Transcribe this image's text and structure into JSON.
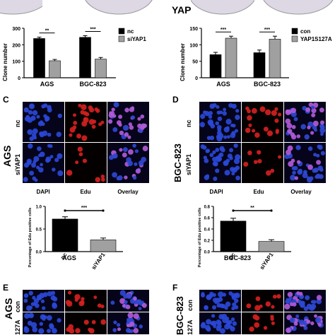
{
  "panels": {
    "A": {
      "label": "",
      "row_labels": [],
      "top_fragment": ""
    },
    "B": {
      "label": "",
      "side_text": "YAP"
    },
    "C": {
      "label": "C",
      "cell_line": "AGS",
      "rows": [
        "nc",
        "siYAP1"
      ],
      "cols": [
        "DAPI",
        "Edu",
        "Overlay"
      ]
    },
    "D": {
      "label": "D",
      "cell_line": "BGC-823",
      "rows": [
        "nc",
        "siYAP1"
      ],
      "cols": [
        "DAPI",
        "Edu",
        "Overlay"
      ]
    },
    "E": {
      "label": "E",
      "cell_line": "AGS",
      "rows": [
        "con",
        "127A"
      ]
    },
    "F": {
      "label": "F",
      "cell_line": "BGC-823",
      "rows": [
        "con",
        "127A"
      ]
    }
  },
  "colors": {
    "dapi": "#2a48d6",
    "edu": "#d42020",
    "overlay": "#a050d0",
    "bar_dark": "#000000",
    "bar_light": "#a0a0a0",
    "plate_bg": "#ddd8e4",
    "colony": "#6a4fa0"
  },
  "chart_data": [
    {
      "id": "clone-A",
      "type": "bar",
      "categories": [
        "AGS",
        "BGC-823"
      ],
      "series": [
        {
          "name": "nc",
          "values": [
            238,
            245
          ],
          "errors": [
            8,
            10
          ],
          "color": "#000000"
        },
        {
          "name": "siYAP1",
          "values": [
            103,
            113
          ],
          "errors": [
            8,
            10
          ],
          "color": "#a0a0a0"
        }
      ],
      "ylabel": "Clone number",
      "ylim": [
        0,
        300
      ],
      "yticks": [
        0,
        100,
        200,
        300
      ],
      "significance": [
        "**",
        "***"
      ],
      "legend": "right"
    },
    {
      "id": "clone-B",
      "type": "bar",
      "categories": [
        "AGS",
        "BGC-823"
      ],
      "series": [
        {
          "name": "con",
          "values": [
            70,
            76
          ],
          "errors": [
            7,
            8
          ],
          "color": "#000000"
        },
        {
          "name": "YAP1S127A",
          "values": [
            120,
            117
          ],
          "errors": [
            6,
            9
          ],
          "color": "#a0a0a0"
        }
      ],
      "ylabel": "Clone number",
      "ylim": [
        0,
        150
      ],
      "yticks": [
        0,
        50,
        100,
        150
      ],
      "significance": [
        "***",
        "***"
      ],
      "legend": "right"
    },
    {
      "id": "edu-C",
      "type": "bar",
      "categories": [
        "nc",
        "siYAP1"
      ],
      "group_label": "AGS",
      "values": [
        0.72,
        0.26
      ],
      "errors": [
        0.05,
        0.04
      ],
      "colors": [
        "#000000",
        "#a0a0a0"
      ],
      "ylabel": "Percentage of Edu positive cells",
      "ylim": [
        0,
        1.0
      ],
      "yticks": [
        0.0,
        0.5,
        1.0
      ],
      "significance": "***"
    },
    {
      "id": "edu-D",
      "type": "bar",
      "categories": [
        "nc",
        "siYAP1"
      ],
      "group_label": "BGC-823",
      "values": [
        0.54,
        0.18
      ],
      "errors": [
        0.05,
        0.03
      ],
      "colors": [
        "#000000",
        "#a0a0a0"
      ],
      "ylabel": "Percentage of Edu positive cells",
      "ylim": [
        0,
        0.8
      ],
      "yticks": [
        0.0,
        0.2,
        0.4,
        0.6,
        0.8
      ],
      "significance": "**"
    }
  ]
}
